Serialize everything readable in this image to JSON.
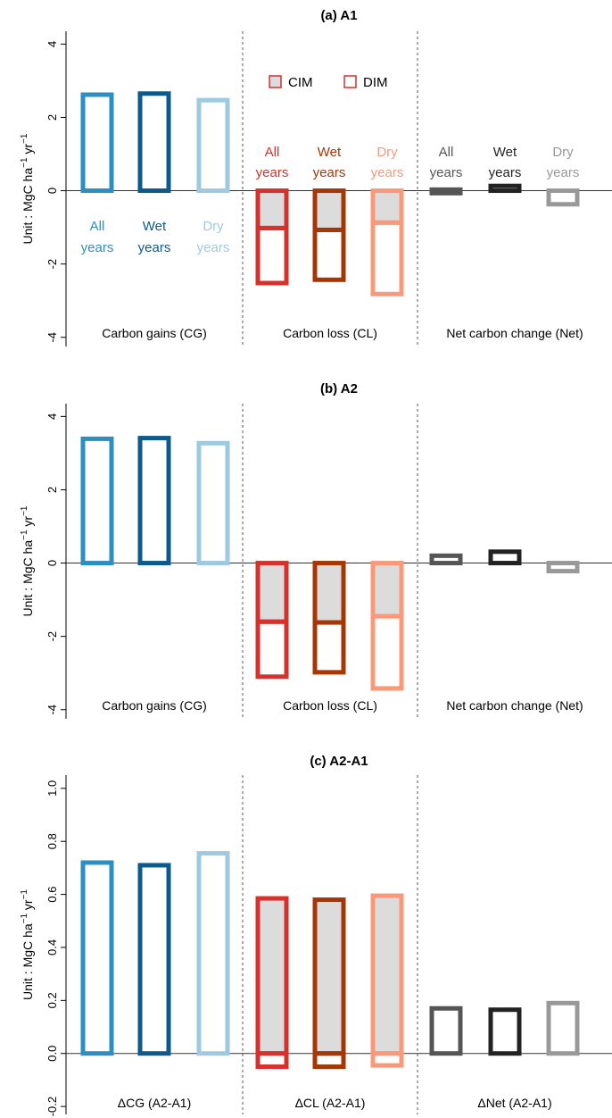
{
  "y_axis_label": {
    "unit_prefix": "Unit : ",
    "unit_main": "MgC ha",
    "unit_exp1": "−1",
    "unit_space": " yr",
    "unit_exp2": "−1"
  },
  "legend": {
    "cim": "CIM",
    "dim": "DIM"
  },
  "colors": {
    "cg": [
      "#2c8fc2",
      "#0c5a8c",
      "#9ecae1"
    ],
    "cl": [
      "#d8302b",
      "#a63603",
      "#f9997a"
    ],
    "net": [
      "#555555",
      "#222222",
      "#999999"
    ],
    "cim_fill": "#dcdcdc"
  },
  "chart_data": [
    {
      "type": "bar",
      "panel": "a",
      "title": "(a) A1",
      "ylim": [
        -4.25,
        4.35
      ],
      "yticks": [
        "-4",
        "-2",
        "0",
        "2",
        "4"
      ],
      "ytick_values": [
        -4,
        -2,
        0,
        2,
        4
      ],
      "groups": [
        "Carbon gains (CG)",
        "Carbon loss (CL)",
        "Net carbon change (Net)"
      ],
      "categories": [
        "All years",
        "Wet years",
        "Dry years"
      ],
      "inline_labels": {
        "cg": [
          [
            "All",
            "years"
          ],
          [
            "Wet",
            "years"
          ],
          [
            "Dry",
            "years"
          ]
        ],
        "cl": [
          [
            "All",
            "years"
          ],
          [
            "Wet",
            "years"
          ],
          [
            "Dry",
            "years"
          ]
        ],
        "net": [
          [
            "All",
            "years"
          ],
          [
            "Wet",
            "years"
          ],
          [
            "Dry",
            "years"
          ]
        ]
      },
      "cg": [
        2.62,
        2.65,
        2.47
      ],
      "cl_total": [
        -2.52,
        -2.43,
        -2.82
      ],
      "cl_cim": [
        -1.02,
        -1.07,
        -0.87
      ],
      "net": [
        0.03,
        0.13,
        -0.37
      ],
      "grid": false
    },
    {
      "type": "bar",
      "panel": "b",
      "title": "(b) A2",
      "ylim": [
        -4.25,
        4.35
      ],
      "yticks": [
        "-4",
        "-2",
        "0",
        "2",
        "4"
      ],
      "ytick_values": [
        -4,
        -2,
        0,
        2,
        4
      ],
      "groups": [
        "Carbon gains (CG)",
        "Carbon loss (CL)",
        "Net carbon change (Net)"
      ],
      "cg": [
        3.39,
        3.41,
        3.27
      ],
      "cl_total": [
        -3.1,
        -2.98,
        -3.42
      ],
      "cl_cim": [
        -1.6,
        -1.62,
        -1.45
      ],
      "net": [
        0.2,
        0.31,
        -0.22
      ],
      "grid": false
    },
    {
      "type": "bar",
      "panel": "c",
      "title": "(c) A2-A1",
      "ylim": [
        -0.23,
        1.05
      ],
      "yticks": [
        "-0.2",
        "0.0",
        "0.2",
        "0.4",
        "0.6",
        "0.8",
        "1.0"
      ],
      "ytick_values": [
        -0.2,
        0,
        0.2,
        0.4,
        0.6,
        0.8,
        1.0
      ],
      "groups": [
        "ΔCG (A2-A1)",
        "ΔCL (A2-A1)",
        "ΔNet (A2-A1)"
      ],
      "cg": [
        0.72,
        0.71,
        0.755
      ],
      "cl_top": [
        0.585,
        0.58,
        0.595
      ],
      "cl_bottom": [
        -0.05,
        -0.05,
        -0.045
      ],
      "net": [
        0.17,
        0.165,
        0.19
      ],
      "grid": false
    }
  ]
}
